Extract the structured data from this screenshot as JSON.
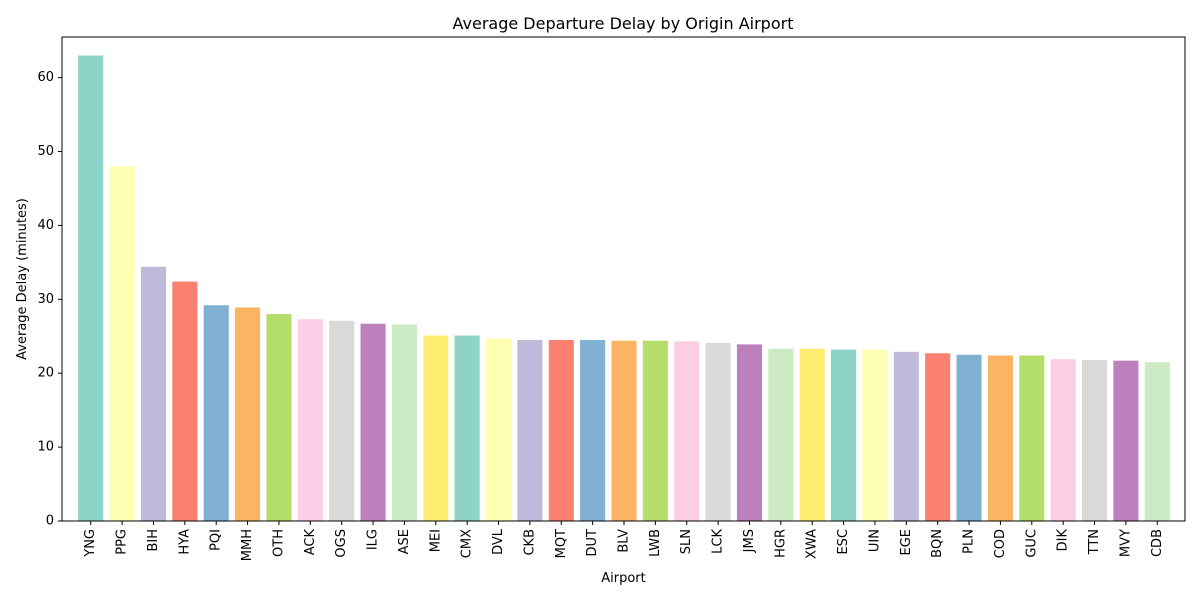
{
  "chart_data": {
    "type": "bar",
    "title": "Average Departure Delay by Origin Airport",
    "xlabel": "Airport",
    "ylabel": "Average Delay (minutes)",
    "ylim": [
      0,
      65.5
    ],
    "yticks": [
      0,
      10,
      20,
      30,
      40,
      50,
      60
    ],
    "grid": false,
    "categories": [
      "YNG",
      "PPG",
      "BIH",
      "HYA",
      "PQI",
      "MMH",
      "OTH",
      "ACK",
      "OGS",
      "ILG",
      "ASE",
      "MEI",
      "CMX",
      "DVL",
      "CKB",
      "MQT",
      "DUT",
      "BLV",
      "LWB",
      "SLN",
      "LCK",
      "JMS",
      "HGR",
      "XWA",
      "ESC",
      "UIN",
      "EGE",
      "BQN",
      "PLN",
      "COD",
      "GUC",
      "DIK",
      "TTN",
      "MVY",
      "CDB"
    ],
    "values": [
      63.0,
      48.0,
      34.4,
      32.4,
      29.2,
      28.9,
      28.0,
      27.3,
      27.1,
      26.7,
      26.6,
      25.1,
      25.1,
      24.7,
      24.5,
      24.5,
      24.5,
      24.4,
      24.4,
      24.3,
      24.1,
      23.9,
      23.3,
      23.3,
      23.2,
      23.2,
      22.9,
      22.7,
      22.5,
      22.4,
      22.4,
      21.9,
      21.8,
      21.7,
      21.5
    ],
    "colors": [
      "#8dd3c7",
      "#ffffb3",
      "#bebada",
      "#fb8072",
      "#80b1d3",
      "#fdb462",
      "#b3de69",
      "#fccde5",
      "#d9d9d9",
      "#bc80bd",
      "#ccebc5",
      "#ffed6f"
    ]
  }
}
